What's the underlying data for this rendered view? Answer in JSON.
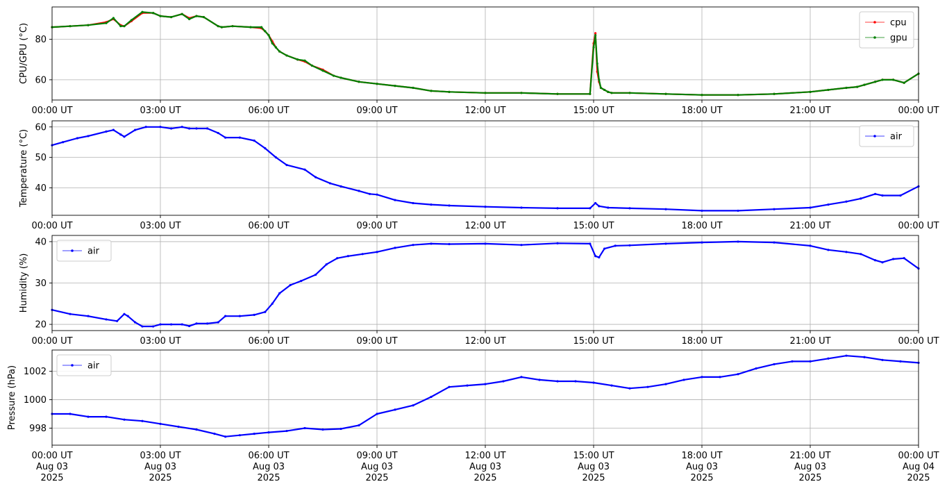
{
  "chart_data": [
    {
      "type": "line",
      "ylabel": "CPU/GPU (°C)",
      "ylim": [
        50,
        96
      ],
      "yticks": [
        60,
        80
      ],
      "grid": true,
      "legend_position": "top-right",
      "x_tick_labels": [
        "00:00 UT",
        "03:00 UT",
        "06:00 UT",
        "09:00 UT",
        "12:00 UT",
        "15:00 UT",
        "18:00 UT",
        "21:00 UT",
        "00:00 UT"
      ],
      "series": [
        {
          "name": "cpu",
          "color": "#ff0000",
          "x_hours": [
            0,
            0.5,
            1.0,
            1.5,
            1.7,
            1.9,
            2.0,
            2.2,
            2.5,
            2.8,
            3.0,
            3.3,
            3.6,
            3.8,
            4.0,
            4.2,
            4.6,
            4.7,
            5.0,
            5.5,
            5.8,
            5.9,
            6.0,
            6.1,
            6.2,
            6.3,
            6.5,
            6.8,
            7.0,
            7.2,
            7.5,
            7.8,
            8.0,
            8.5,
            9.0,
            9.5,
            10.0,
            10.5,
            11.0,
            12.0,
            13.0,
            14.0,
            14.9,
            15.0,
            15.05,
            15.1,
            15.15,
            15.2,
            15.3,
            15.4,
            15.5,
            16.0,
            17.0,
            18.0,
            19.0,
            20.0,
            21.0,
            21.5,
            22.0,
            22.3,
            22.5,
            22.8,
            23.0,
            23.3,
            23.6,
            24.0
          ],
          "y": [
            86,
            86.5,
            87,
            88.5,
            90,
            87,
            86.5,
            89,
            93,
            93,
            91.5,
            91,
            92.5,
            90.5,
            91.5,
            91,
            86.5,
            86,
            86.5,
            86,
            85.5,
            84,
            82,
            79,
            76,
            74,
            72,
            70,
            69,
            67,
            65,
            62,
            61,
            59,
            58,
            57,
            56,
            54.5,
            54,
            53.5,
            53.5,
            53,
            53,
            78,
            83,
            64,
            59,
            56,
            55,
            54,
            53.5,
            53.5,
            53,
            52.5,
            52.5,
            53,
            54,
            55,
            56,
            56.5,
            57.5,
            59,
            60,
            60,
            58.5,
            63
          ]
        },
        {
          "name": "gpu",
          "color": "#008000",
          "x_hours": [
            0,
            0.5,
            1.0,
            1.5,
            1.7,
            1.9,
            2.0,
            2.2,
            2.5,
            2.8,
            3.0,
            3.3,
            3.6,
            3.8,
            4.0,
            4.2,
            4.6,
            4.7,
            5.0,
            5.5,
            5.8,
            5.9,
            6.0,
            6.1,
            6.2,
            6.3,
            6.5,
            6.8,
            7.0,
            7.2,
            7.5,
            7.8,
            8.0,
            8.5,
            9.0,
            9.5,
            10.0,
            10.5,
            11.0,
            12.0,
            13.0,
            14.0,
            14.9,
            15.0,
            15.05,
            15.1,
            15.15,
            15.2,
            15.3,
            15.4,
            15.5,
            16.0,
            17.0,
            18.0,
            19.0,
            20.0,
            21.0,
            21.5,
            22.0,
            22.3,
            22.5,
            22.8,
            23.0,
            23.3,
            23.6,
            24.0
          ],
          "y": [
            86,
            86.5,
            87,
            88,
            90.5,
            86.5,
            86.5,
            89.5,
            93.5,
            93,
            91.5,
            91,
            92.5,
            90,
            91.5,
            91,
            86.5,
            86,
            86.5,
            86,
            86,
            84,
            82,
            78,
            76,
            74,
            72,
            70,
            69.5,
            67,
            64.5,
            62,
            61,
            59,
            58,
            57,
            56,
            54.5,
            54,
            53.5,
            53.5,
            53,
            53,
            76,
            82,
            68,
            60,
            56,
            55,
            54,
            53.5,
            53.5,
            53,
            52.5,
            52.5,
            53,
            54,
            55,
            56,
            56.5,
            57.5,
            59,
            60,
            60,
            58.5,
            63
          ]
        }
      ]
    },
    {
      "type": "line",
      "ylabel": "Temperature (°C)",
      "ylim": [
        31,
        62
      ],
      "yticks": [
        40,
        50,
        60
      ],
      "grid": true,
      "legend_position": "top-right",
      "x_tick_labels": [
        "00:00 UT",
        "03:00 UT",
        "06:00 UT",
        "09:00 UT",
        "12:00 UT",
        "15:00 UT",
        "18:00 UT",
        "21:00 UT",
        "00:00 UT"
      ],
      "series": [
        {
          "name": "air",
          "color": "#0000ff",
          "x_hours": [
            0,
            0.3,
            0.7,
            1.0,
            1.5,
            1.7,
            1.9,
            2.0,
            2.3,
            2.6,
            3.0,
            3.3,
            3.6,
            3.8,
            4.0,
            4.3,
            4.6,
            4.8,
            5.2,
            5.6,
            5.9,
            6.2,
            6.5,
            7.0,
            7.3,
            7.7,
            8.0,
            8.5,
            8.8,
            9.0,
            9.5,
            10.0,
            10.5,
            11.0,
            12.0,
            13.0,
            14.0,
            14.9,
            15.05,
            15.15,
            15.4,
            16.0,
            17.0,
            18.0,
            19.0,
            20.0,
            21.0,
            21.5,
            22.0,
            22.4,
            22.8,
            23.0,
            23.5,
            24.0
          ],
          "y": [
            54,
            55,
            56.3,
            57,
            58.5,
            59,
            57.5,
            56.8,
            59,
            60,
            60,
            59.5,
            60,
            59.5,
            59.5,
            59.5,
            58,
            56.5,
            56.5,
            55.5,
            53,
            50,
            47.5,
            46,
            43.5,
            41.5,
            40.5,
            39,
            38,
            37.8,
            36,
            35,
            34.5,
            34.2,
            33.8,
            33.5,
            33.3,
            33.3,
            35,
            34,
            33.5,
            33.3,
            33,
            32.5,
            32.5,
            33,
            33.5,
            34.5,
            35.5,
            36.5,
            38,
            37.5,
            37.5,
            40.5
          ]
        }
      ]
    },
    {
      "type": "line",
      "ylabel": "Humidity (%)",
      "ylim": [
        18.5,
        41.5
      ],
      "yticks": [
        20,
        30,
        40
      ],
      "grid": true,
      "legend_position": "top-left",
      "x_tick_labels": [
        "00:00 UT",
        "03:00 UT",
        "06:00 UT",
        "09:00 UT",
        "12:00 UT",
        "15:00 UT",
        "18:00 UT",
        "21:00 UT",
        "00:00 UT"
      ],
      "series": [
        {
          "name": "air",
          "color": "#0000ff",
          "x_hours": [
            0,
            0.5,
            1.0,
            1.5,
            1.8,
            2.0,
            2.1,
            2.3,
            2.5,
            2.8,
            3.0,
            3.3,
            3.6,
            3.8,
            4.0,
            4.3,
            4.6,
            4.8,
            5.2,
            5.6,
            5.9,
            6.1,
            6.3,
            6.6,
            6.9,
            7.3,
            7.6,
            7.9,
            8.2,
            8.6,
            9.0,
            9.5,
            10.0,
            10.5,
            11.0,
            12.0,
            13.0,
            14.0,
            14.9,
            15.05,
            15.15,
            15.3,
            15.6,
            16.0,
            17.0,
            18.0,
            19.0,
            20.0,
            21.0,
            21.5,
            22.0,
            22.4,
            22.8,
            23.0,
            23.3,
            23.6,
            24.0
          ],
          "y": [
            23.5,
            22.5,
            22,
            21.2,
            20.8,
            22.5,
            22,
            20.5,
            19.5,
            19.5,
            20,
            20,
            20,
            19.6,
            20.2,
            20.2,
            20.5,
            22,
            22,
            22.3,
            23,
            25,
            27.5,
            29.5,
            30.5,
            32,
            34.5,
            36,
            36.5,
            37,
            37.5,
            38.5,
            39.2,
            39.5,
            39.4,
            39.5,
            39.2,
            39.6,
            39.5,
            36.5,
            36.2,
            38.3,
            39,
            39.1,
            39.5,
            39.8,
            40,
            39.8,
            39,
            38,
            37.5,
            37,
            35.5,
            35,
            35.8,
            36,
            33.5
          ]
        }
      ]
    },
    {
      "type": "line",
      "ylabel": "Pressure (hPa)",
      "ylim": [
        996.8,
        1003.5
      ],
      "yticks": [
        998,
        1000,
        1002
      ],
      "grid": true,
      "legend_position": "top-left",
      "x_tick_labels": [
        "00:00 UT\nAug 03\n2025",
        "03:00 UT\nAug 03\n2025",
        "06:00 UT\nAug 03\n2025",
        "09:00 UT\nAug 03\n2025",
        "12:00 UT\nAug 03\n2025",
        "15:00 UT\nAug 03\n2025",
        "18:00 UT\nAug 03\n2025",
        "21:00 UT\nAug 03\n2025",
        "00:00 UT\nAug 04\n2025"
      ],
      "series": [
        {
          "name": "air",
          "color": "#0000ff",
          "x_hours": [
            0,
            0.5,
            1.0,
            1.5,
            2.0,
            2.5,
            3.0,
            3.5,
            4.0,
            4.5,
            4.8,
            5.2,
            5.6,
            6.0,
            6.5,
            7.0,
            7.5,
            8.0,
            8.5,
            9.0,
            9.5,
            10.0,
            10.5,
            11.0,
            11.5,
            12.0,
            12.5,
            13.0,
            13.5,
            14.0,
            14.5,
            15.0,
            15.5,
            16.0,
            16.5,
            17.0,
            17.5,
            18.0,
            18.5,
            19.0,
            19.5,
            20.0,
            20.5,
            21.0,
            21.5,
            22.0,
            22.5,
            23.0,
            23.5,
            24.0
          ],
          "y": [
            999,
            999,
            998.8,
            998.8,
            998.6,
            998.5,
            998.3,
            998.1,
            997.9,
            997.6,
            997.4,
            997.5,
            997.6,
            997.7,
            997.8,
            998,
            997.9,
            997.95,
            998.2,
            999,
            999.3,
            999.6,
            1000.2,
            1000.9,
            1001,
            1001.1,
            1001.3,
            1001.6,
            1001.4,
            1001.3,
            1001.3,
            1001.2,
            1001,
            1000.8,
            1000.9,
            1001.1,
            1001.4,
            1001.6,
            1001.6,
            1001.8,
            1002.2,
            1002.5,
            1002.7,
            1002.7,
            1002.9,
            1003.1,
            1003,
            1002.8,
            1002.7,
            1002.6
          ]
        }
      ]
    }
  ]
}
